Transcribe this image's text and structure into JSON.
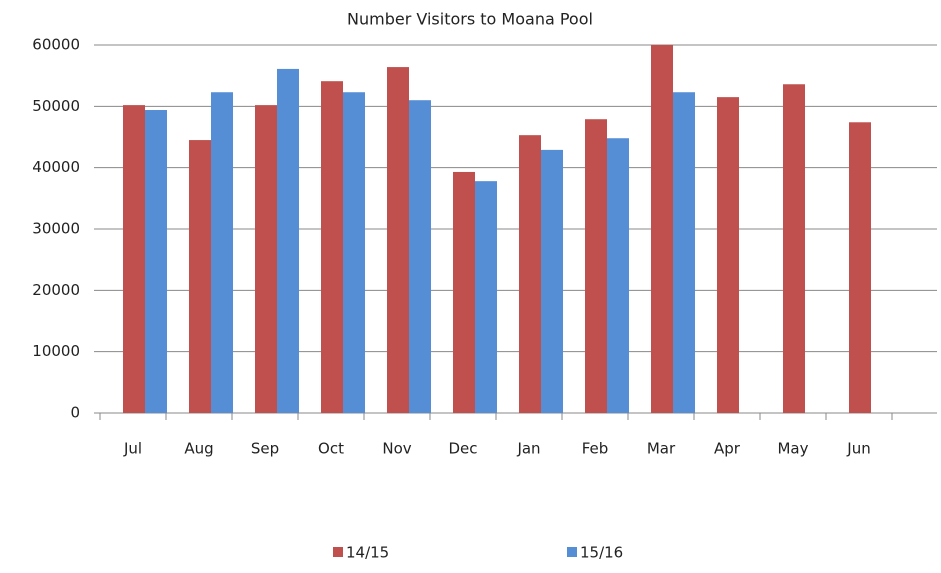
{
  "chart_data": {
    "type": "bar",
    "title": "Number  Visitors to Moana Pool",
    "categories": [
      "Jul",
      "Aug",
      "Sep",
      "Oct",
      "Nov",
      "Dec",
      "Jan",
      "Feb",
      "Mar",
      "Apr",
      "May",
      "Jun"
    ],
    "series": [
      {
        "name": "14/15",
        "color": "#c0504d",
        "values": [
          50200,
          44500,
          50200,
          54100,
          56400,
          39300,
          45300,
          47900,
          60000,
          51500,
          53600,
          47400
        ]
      },
      {
        "name": "15/16",
        "color": "#558ed5",
        "values": [
          49400,
          52300,
          56100,
          52300,
          51000,
          37800,
          42900,
          44800,
          52300,
          null,
          null,
          null
        ]
      }
    ],
    "ylim": [
      0,
      60000
    ],
    "yticks": [
      0,
      10000,
      20000,
      30000,
      40000,
      50000,
      60000
    ],
    "grid": true
  }
}
